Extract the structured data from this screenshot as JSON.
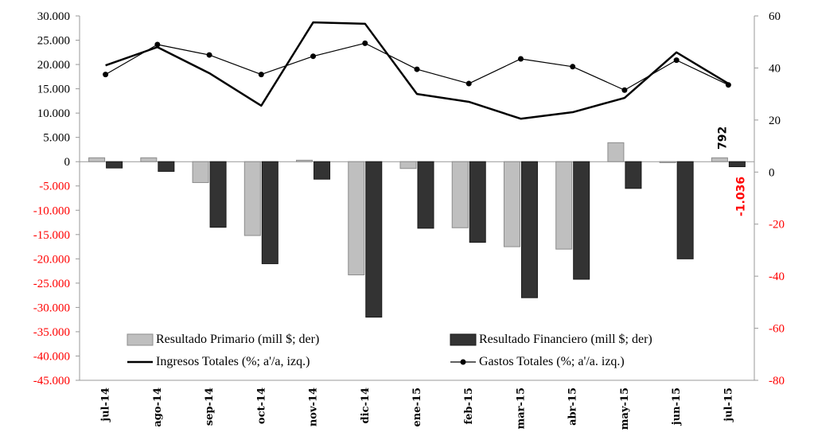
{
  "chart_data": {
    "type": "bar",
    "title": "",
    "categories": [
      "jul-14",
      "ago-14",
      "sep-14",
      "oct-14",
      "nov-14",
      "dic-14",
      "ene-15",
      "feb-15",
      "mar-15",
      "abr-15",
      "may-15",
      "jun-15",
      "jul-15"
    ],
    "left_axis": {
      "ylim": [
        -45000,
        30000
      ],
      "ticks": [
        "30.000",
        "25.000",
        "20.000",
        "15.000",
        "10.000",
        "5.000",
        "0",
        "-5.000",
        "-10.000",
        "-15.000",
        "-20.000",
        "-25.000",
        "-30.000",
        "-35.000",
        "-40.000",
        "-45.000"
      ],
      "tick_values": [
        30000,
        25000,
        20000,
        15000,
        10000,
        5000,
        0,
        -5000,
        -10000,
        -15000,
        -20000,
        -25000,
        -30000,
        -35000,
        -40000,
        -45000
      ]
    },
    "right_axis": {
      "ylim": [
        -80,
        60
      ],
      "ticks": [
        "60",
        "40",
        "20",
        "0",
        "-20",
        "-40",
        "-60",
        "-80"
      ],
      "tick_values": [
        60,
        40,
        20,
        0,
        -20,
        -40,
        -60,
        -80
      ]
    },
    "series": [
      {
        "name": "Resultado Primario  (mill $; der)",
        "type": "bar",
        "color": "#bfbfbf",
        "values": [
          800,
          800,
          -4300,
          -15200,
          300,
          -23300,
          -1400,
          -13600,
          -17500,
          -18000,
          3900,
          -200,
          792
        ]
      },
      {
        "name": "Resultado Financiero (mill $; der)",
        "type": "bar",
        "color": "#333333",
        "values": [
          -1300,
          -2000,
          -13500,
          -21000,
          -3600,
          -32000,
          -13700,
          -16600,
          -28000,
          -24200,
          -5500,
          -20000,
          -1036
        ]
      },
      {
        "name": "Ingresos Totales (%; a'/a, izq.)",
        "type": "line",
        "color": "#000000",
        "values": [
          41,
          48,
          38,
          25.5,
          57.5,
          57,
          30,
          27,
          20.5,
          23,
          28.5,
          46,
          34
        ]
      },
      {
        "name": "Gastos Totales (%; a'/a. izq.)",
        "type": "line",
        "color": "#000000",
        "marker": "circle",
        "values": [
          37.5,
          49,
          45,
          37.5,
          44.5,
          49.5,
          39.5,
          34,
          43.5,
          40.5,
          31.5,
          43,
          33.5
        ]
      }
    ],
    "annotations": [
      {
        "text": "792",
        "category": "jul-15",
        "color": "#000000"
      },
      {
        "text": "-1.036",
        "category": "jul-15",
        "color": "#ff0000"
      }
    ],
    "negative_tick_color": "#ff0000",
    "grid": false,
    "legend_position": "bottom-center"
  }
}
